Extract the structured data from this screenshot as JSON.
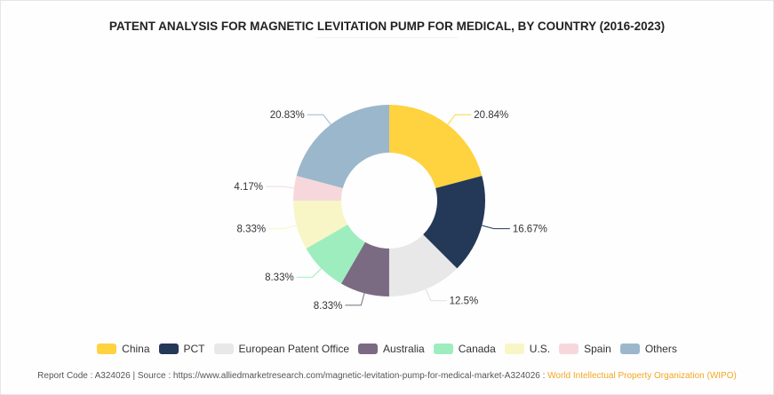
{
  "chart_data": {
    "type": "pie",
    "donut": true,
    "title": "PATENT ANALYSIS FOR MAGNETIC LEVITATION PUMP FOR MEDICAL, BY COUNTRY (2016-2023)",
    "categories": [
      "China",
      "PCT",
      "European Patent Office",
      "Australia",
      "Canada",
      "U.S.",
      "Spain",
      "Others"
    ],
    "values": [
      20.84,
      16.67,
      12.5,
      8.33,
      8.33,
      8.33,
      4.17,
      20.83
    ],
    "labels": [
      "20.84%",
      "16.67%",
      "12.5%",
      "8.33%",
      "8.33%",
      "8.33%",
      "4.17%",
      "20.83%"
    ],
    "colors": [
      "#ffd23f",
      "#243858",
      "#e8e8e8",
      "#7b6b82",
      "#9eedbf",
      "#f8f6c6",
      "#f6d8dc",
      "#9bb7cc"
    ],
    "legend_position": "bottom"
  },
  "footer": {
    "report_code": "Report Code : A324026",
    "separator": "|",
    "source": "Source : https://www.alliedmarketresearch.com/magnetic-levitation-pump-for-medical-market-A324026 :",
    "source_org": "World Intellectual Property Organization (WIPO)"
  }
}
